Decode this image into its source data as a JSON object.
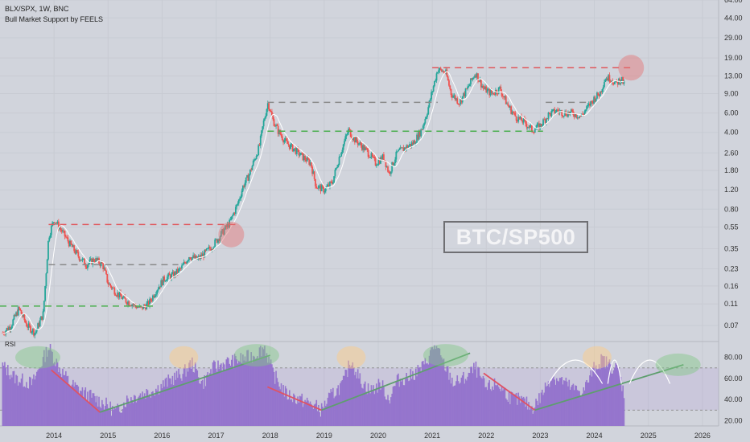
{
  "header": {
    "symbol_line": "BLX/SPX, 1W, BNC",
    "indicator_line": "Bull Market Support by FEELS"
  },
  "label_box": "BTC/SP500",
  "rsi_label": "RSI",
  "colors": {
    "background": "#d1d4dc",
    "candle_up": "#26a69a",
    "candle_down": "#ef5350",
    "resistance": "#e0575b",
    "support": "#4caf50",
    "mid": "#8a8a8a",
    "rsi_fill": "#9575cd",
    "trend_down": "#e05263",
    "trend_up": "#5e9e6e"
  },
  "chart_data": [
    {
      "type": "candlestick",
      "yscale": "log",
      "ylim": [
        0.05,
        64
      ],
      "xlim": [
        2013.0,
        2026.3
      ],
      "price_ticks": [
        "64.00",
        "44.00",
        "29.00",
        "19.00",
        "13.00",
        "9.00",
        "6.00",
        "4.00",
        "2.60",
        "1.80",
        "1.20",
        "0.80",
        "0.55",
        "0.35",
        "0.23",
        "0.16",
        "0.11",
        "0.07"
      ],
      "price_tick_values": [
        64,
        44,
        29,
        19,
        13,
        9,
        6,
        4,
        2.6,
        1.8,
        1.2,
        0.8,
        0.55,
        0.35,
        0.23,
        0.16,
        0.11,
        0.07
      ],
      "x_ticks": [
        "2014",
        "2015",
        "2016",
        "2017",
        "2018",
        "2019",
        "2020",
        "2021",
        "2022",
        "2023",
        "2024",
        "2025",
        "2026"
      ],
      "x_tick_values": [
        2014,
        2015,
        2016,
        2017,
        2018,
        2019,
        2020,
        2021,
        2022,
        2023,
        2024,
        2025,
        2026
      ],
      "price_path": [
        [
          2013.05,
          0.06
        ],
        [
          2013.2,
          0.07
        ],
        [
          2013.35,
          0.1
        ],
        [
          2013.5,
          0.07
        ],
        [
          2013.65,
          0.06
        ],
        [
          2013.8,
          0.09
        ],
        [
          2013.9,
          0.45
        ],
        [
          2014.0,
          0.65
        ],
        [
          2014.15,
          0.5
        ],
        [
          2014.3,
          0.38
        ],
        [
          2014.45,
          0.3
        ],
        [
          2014.6,
          0.25
        ],
        [
          2014.75,
          0.28
        ],
        [
          2014.9,
          0.25
        ],
        [
          2015.0,
          0.17
        ],
        [
          2015.15,
          0.14
        ],
        [
          2015.3,
          0.12
        ],
        [
          2015.45,
          0.11
        ],
        [
          2015.6,
          0.1
        ],
        [
          2015.75,
          0.11
        ],
        [
          2015.9,
          0.15
        ],
        [
          2016.05,
          0.19
        ],
        [
          2016.2,
          0.2
        ],
        [
          2016.35,
          0.23
        ],
        [
          2016.5,
          0.3
        ],
        [
          2016.65,
          0.28
        ],
        [
          2016.8,
          0.32
        ],
        [
          2016.95,
          0.38
        ],
        [
          2017.1,
          0.48
        ],
        [
          2017.25,
          0.6
        ],
        [
          2017.4,
          0.9
        ],
        [
          2017.5,
          1.3
        ],
        [
          2017.6,
          1.6
        ],
        [
          2017.7,
          2.2
        ],
        [
          2017.8,
          3.0
        ],
        [
          2017.88,
          5.0
        ],
        [
          2017.96,
          7.5
        ],
        [
          2018.05,
          5.2
        ],
        [
          2018.15,
          4.1
        ],
        [
          2018.3,
          3.2
        ],
        [
          2018.45,
          2.8
        ],
        [
          2018.6,
          2.4
        ],
        [
          2018.75,
          2.1
        ],
        [
          2018.85,
          1.3
        ],
        [
          2019.0,
          1.2
        ],
        [
          2019.15,
          1.4
        ],
        [
          2019.3,
          2.6
        ],
        [
          2019.45,
          4.2
        ],
        [
          2019.55,
          3.5
        ],
        [
          2019.7,
          3.0
        ],
        [
          2019.85,
          2.5
        ],
        [
          2019.95,
          2.1
        ],
        [
          2020.1,
          2.4
        ],
        [
          2020.2,
          1.7
        ],
        [
          2020.35,
          2.6
        ],
        [
          2020.5,
          2.9
        ],
        [
          2020.65,
          3.2
        ],
        [
          2020.8,
          4.2
        ],
        [
          2020.9,
          6.0
        ],
        [
          2021.0,
          9.5
        ],
        [
          2021.1,
          15
        ],
        [
          2021.25,
          14
        ],
        [
          2021.35,
          9
        ],
        [
          2021.5,
          7.5
        ],
        [
          2021.65,
          10
        ],
        [
          2021.8,
          14
        ],
        [
          2021.95,
          10
        ],
        [
          2022.1,
          9
        ],
        [
          2022.25,
          10
        ],
        [
          2022.4,
          7
        ],
        [
          2022.55,
          5.5
        ],
        [
          2022.7,
          5.0
        ],
        [
          2022.85,
          4.2
        ],
        [
          2023.0,
          4.6
        ],
        [
          2023.15,
          5.8
        ],
        [
          2023.3,
          6.3
        ],
        [
          2023.45,
          6.0
        ],
        [
          2023.6,
          6.0
        ],
        [
          2023.75,
          5.6
        ],
        [
          2023.9,
          7.0
        ],
        [
          2024.0,
          8.2
        ],
        [
          2024.1,
          9.0
        ],
        [
          2024.2,
          12.5
        ],
        [
          2024.3,
          12.5
        ],
        [
          2024.4,
          11.0
        ],
        [
          2024.5,
          12.5
        ],
        [
          2024.55,
          10.8
        ]
      ],
      "horizontal_levels": [
        {
          "value": 15.5,
          "from": 2021.0,
          "to": 2024.7,
          "style": "resistance"
        },
        {
          "value": 7.5,
          "from": 2017.95,
          "to": 2021.1,
          "style": "mid"
        },
        {
          "value": 7.5,
          "from": 2023.1,
          "to": 2023.9,
          "style": "mid"
        },
        {
          "value": 4.1,
          "from": 2017.95,
          "to": 2023.05,
          "style": "support"
        },
        {
          "value": 0.58,
          "from": 2013.9,
          "to": 2017.4,
          "style": "resistance"
        },
        {
          "value": 0.25,
          "from": 2013.9,
          "to": 2016.3,
          "style": "mid"
        },
        {
          "value": 0.105,
          "from": 2013.0,
          "to": 2015.9,
          "style": "support"
        }
      ],
      "highlight_circles": [
        {
          "x": 2017.28,
          "y": 0.47,
          "color": "#e57373"
        },
        {
          "x": 2024.68,
          "y": 15.5,
          "color": "#e57373"
        }
      ]
    },
    {
      "type": "area",
      "name": "RSI",
      "ylim": [
        15,
        95
      ],
      "y_ticks": [
        "80.00",
        "60.00",
        "40.00",
        "20.00"
      ],
      "y_tick_values": [
        80,
        60,
        40,
        20
      ],
      "band": [
        30,
        70
      ],
      "rsi_path": [
        [
          2013.05,
          72
        ],
        [
          2013.3,
          60
        ],
        [
          2013.6,
          55
        ],
        [
          2013.9,
          90
        ],
        [
          2014.1,
          70
        ],
        [
          2014.3,
          55
        ],
        [
          2014.6,
          45
        ],
        [
          2014.8,
          40
        ],
        [
          2015.0,
          34
        ],
        [
          2015.15,
          28
        ],
        [
          2015.35,
          40
        ],
        [
          2015.6,
          45
        ],
        [
          2015.9,
          50
        ],
        [
          2016.2,
          60
        ],
        [
          2016.4,
          65
        ],
        [
          2016.55,
          75
        ],
        [
          2016.75,
          55
        ],
        [
          2016.95,
          70
        ],
        [
          2017.2,
          75
        ],
        [
          2017.45,
          78
        ],
        [
          2017.7,
          82
        ],
        [
          2017.9,
          90
        ],
        [
          2018.05,
          65
        ],
        [
          2018.3,
          45
        ],
        [
          2018.55,
          40
        ],
        [
          2018.8,
          35
        ],
        [
          2018.95,
          30
        ],
        [
          2019.1,
          42
        ],
        [
          2019.35,
          55
        ],
        [
          2019.5,
          78
        ],
        [
          2019.65,
          60
        ],
        [
          2019.85,
          48
        ],
        [
          2020.05,
          55
        ],
        [
          2020.2,
          40
        ],
        [
          2020.35,
          58
        ],
        [
          2020.6,
          62
        ],
        [
          2020.85,
          72
        ],
        [
          2021.05,
          92
        ],
        [
          2021.2,
          75
        ],
        [
          2021.4,
          55
        ],
        [
          2021.6,
          60
        ],
        [
          2021.8,
          70
        ],
        [
          2022.0,
          50
        ],
        [
          2022.2,
          55
        ],
        [
          2022.45,
          42
        ],
        [
          2022.7,
          38
        ],
        [
          2022.85,
          32
        ],
        [
          2023.0,
          42
        ],
        [
          2023.2,
          62
        ],
        [
          2023.4,
          58
        ],
        [
          2023.6,
          50
        ],
        [
          2023.8,
          48
        ],
        [
          2024.0,
          70
        ],
        [
          2024.15,
          78
        ],
        [
          2024.3,
          72
        ],
        [
          2024.45,
          68
        ],
        [
          2024.55,
          45
        ]
      ],
      "trendlines": [
        {
          "points": [
            [
              2013.95,
              68
            ],
            [
              2014.85,
              28
            ]
          ],
          "style": "trend_down"
        },
        {
          "points": [
            [
              2014.85,
              28
            ],
            [
              2018.0,
              82
            ]
          ],
          "style": "trend_up"
        },
        {
          "points": [
            [
              2017.95,
              52
            ],
            [
              2018.95,
              30
            ]
          ],
          "style": "trend_down"
        },
        {
          "points": [
            [
              2018.95,
              30
            ],
            [
              2021.7,
              84
            ]
          ],
          "style": "trend_up"
        },
        {
          "points": [
            [
              2021.95,
              65
            ],
            [
              2022.9,
              30
            ]
          ],
          "style": "trend_down"
        },
        {
          "points": [
            [
              2022.9,
              30
            ],
            [
              2025.65,
              73
            ]
          ],
          "style": "trend_up"
        }
      ],
      "highlight_circles": [
        {
          "x": 2013.7,
          "y": 80,
          "color": "#81c784"
        },
        {
          "x": 2016.4,
          "y": 80,
          "color": "#ffcc80"
        },
        {
          "x": 2017.75,
          "y": 82,
          "color": "#81c784"
        },
        {
          "x": 2019.5,
          "y": 80,
          "color": "#ffcc80"
        },
        {
          "x": 2021.25,
          "y": 82,
          "color": "#81c784"
        },
        {
          "x": 2024.05,
          "y": 80,
          "color": "#ffcc80"
        },
        {
          "x": 2025.55,
          "y": 73,
          "color": "#81c784"
        }
      ],
      "arcs": [
        [
          2023.15,
          2024.15
        ],
        [
          2024.25,
          2024.5
        ],
        [
          2024.65,
          2025.4
        ]
      ]
    }
  ]
}
